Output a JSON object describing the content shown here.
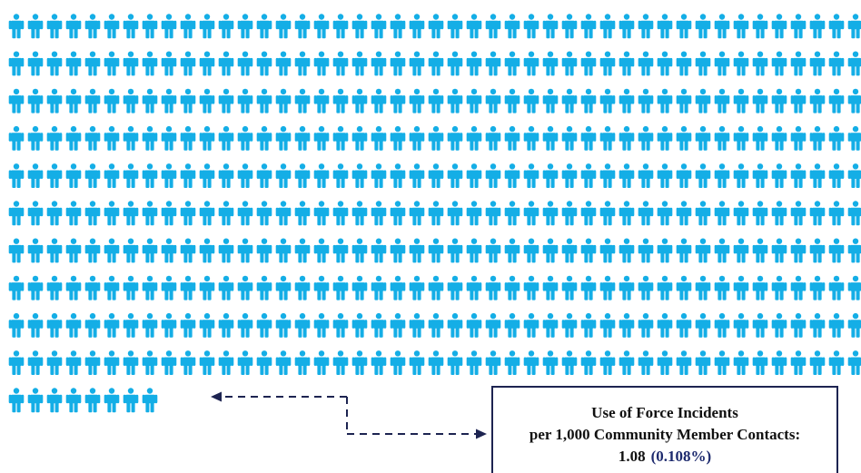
{
  "chart_data": {
    "type": "pictogram",
    "unit": "person icon",
    "total_icons": 1000,
    "highlighted_value": 1.08,
    "colors": {
      "base": "#14aee6",
      "highlight": "#f5c518",
      "arrow": "#1d2451"
    }
  },
  "callout": {
    "line1": "Use of Force Incidents",
    "line2": "per 1,000 Community Member Contacts:",
    "value": "1.08",
    "percent": "(0.108%)"
  }
}
